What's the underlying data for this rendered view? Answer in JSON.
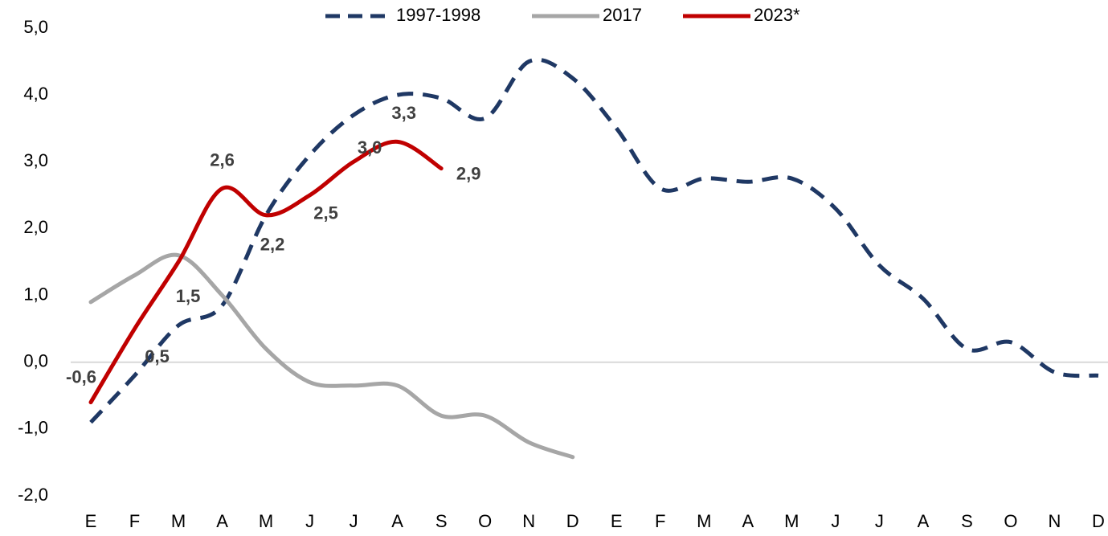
{
  "chart_data": {
    "type": "line",
    "categories": [
      "E",
      "F",
      "M",
      "A",
      "M",
      "J",
      "J",
      "A",
      "S",
      "O",
      "N",
      "D",
      "E",
      "F",
      "M",
      "A",
      "M",
      "J",
      "J",
      "A",
      "S",
      "O",
      "N",
      "D"
    ],
    "series": [
      {
        "name": "1997-1998",
        "color": "#1f3864",
        "dashed": true,
        "values": [
          -0.9,
          -0.2,
          0.55,
          0.85,
          2.2,
          3.1,
          3.7,
          4.0,
          3.95,
          3.65,
          4.5,
          4.25,
          3.5,
          2.6,
          2.75,
          2.7,
          2.75,
          2.3,
          1.45,
          0.95,
          0.2,
          0.3,
          -0.15,
          -0.2
        ]
      },
      {
        "name": "2017",
        "color": "#a6a6a6",
        "dashed": false,
        "values": [
          0.9,
          1.3,
          1.6,
          1.0,
          0.2,
          -0.3,
          -0.35,
          -0.35,
          -0.8,
          -0.8,
          -1.2,
          -1.42,
          null,
          null,
          null,
          null,
          null,
          null,
          null,
          null,
          null,
          null,
          null,
          null
        ]
      },
      {
        "name": "2023*",
        "color": "#c00000",
        "dashed": false,
        "values": [
          -0.6,
          0.5,
          1.5,
          2.6,
          2.2,
          2.5,
          3.0,
          3.3,
          2.9,
          null,
          null,
          null,
          null,
          null,
          null,
          null,
          null,
          null,
          null,
          null,
          null,
          null,
          null,
          null
        ],
        "value_labels": [
          "-0,6",
          "0,5",
          "1,5",
          "2,6",
          "2,2",
          "2,5",
          "3,0",
          "3,3",
          "2,9",
          null,
          null,
          null,
          null,
          null,
          null,
          null,
          null,
          null,
          null,
          null,
          null,
          null,
          null,
          null
        ]
      }
    ],
    "ylim": [
      -2,
      5
    ],
    "yticks": [
      {
        "value": -2,
        "label": "-2,0"
      },
      {
        "value": -1,
        "label": "-1,0"
      },
      {
        "value": 0,
        "label": "0,0"
      },
      {
        "value": 1,
        "label": "1,0"
      },
      {
        "value": 2,
        "label": "2,0"
      },
      {
        "value": 3,
        "label": "3,0"
      },
      {
        "value": 4,
        "label": "4,0"
      },
      {
        "value": 5,
        "label": "5,0"
      }
    ],
    "zero_line": true,
    "legend": "top"
  }
}
